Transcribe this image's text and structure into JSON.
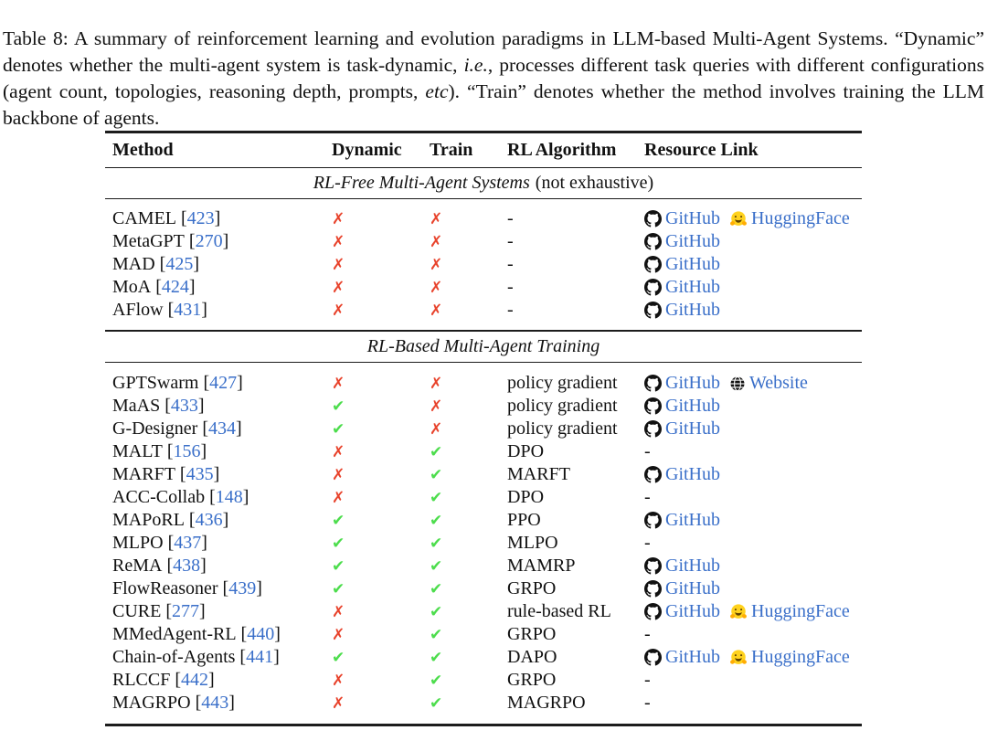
{
  "caption": {
    "p1": "Table 8: A summary of reinforcement learning and evolution paradigms in LLM-based Multi-Agent Systems. “Dynamic” denotes whether the multi-agent system is task-dynamic, ",
    "p2": "i.e.",
    "p3": ", processes different task queries with different configurations (agent count, topologies, reasoning depth, prompts, ",
    "p4": "etc",
    "p5": "). “Train” denotes whether the method involves training the LLM backbone of agents."
  },
  "marks": {
    "yes": "✔",
    "no": "✗"
  },
  "punct": {
    "open": "[",
    "close": "]",
    "dash": "-"
  },
  "link_labels": {
    "github": "GitHub",
    "huggingface": "HuggingFace",
    "website": "Website"
  },
  "colors": {
    "link_blue": "#3a6fc9",
    "check_green": "#4ddd4d",
    "cross_red": "#e8432c",
    "rule_black": "#1c1c1c",
    "text_black": "#111111"
  },
  "table": {
    "header": [
      "Method",
      "Dynamic",
      "Train",
      "RL Algorithm",
      "Resource Link"
    ],
    "sections": [
      {
        "title_italic": "RL-Free Multi-Agent Systems",
        "title_regular": "(not exhaustive)",
        "rows": [
          {
            "method": "CAMEL",
            "cite": "423",
            "dynamic": false,
            "train": false,
            "algorithm": "-",
            "links": [
              "github",
              "huggingface"
            ]
          },
          {
            "method": "MetaGPT",
            "cite": "270",
            "dynamic": false,
            "train": false,
            "algorithm": "-",
            "links": [
              "github"
            ]
          },
          {
            "method": "MAD",
            "cite": "425",
            "dynamic": false,
            "train": false,
            "algorithm": "-",
            "links": [
              "github"
            ]
          },
          {
            "method": "MoA",
            "cite": "424",
            "dynamic": false,
            "train": false,
            "algorithm": "-",
            "links": [
              "github"
            ]
          },
          {
            "method": "AFlow",
            "cite": "431",
            "dynamic": false,
            "train": false,
            "algorithm": "-",
            "links": [
              "github"
            ]
          }
        ]
      },
      {
        "title_italic": "RL-Based Multi-Agent Training",
        "title_regular": "",
        "rows": [
          {
            "method": "GPTSwarm",
            "cite": "427",
            "dynamic": false,
            "train": false,
            "algorithm": "policy gradient",
            "links": [
              "github",
              "website"
            ]
          },
          {
            "method": "MaAS",
            "cite": "433",
            "dynamic": true,
            "train": false,
            "algorithm": "policy gradient",
            "links": [
              "github"
            ]
          },
          {
            "method": "G-Designer",
            "cite": "434",
            "dynamic": true,
            "train": false,
            "algorithm": "policy gradient",
            "links": [
              "github"
            ]
          },
          {
            "method": "MALT",
            "cite": "156",
            "dynamic": false,
            "train": true,
            "algorithm": "DPO",
            "links": []
          },
          {
            "method": "MARFT",
            "cite": "435",
            "dynamic": false,
            "train": true,
            "algorithm": "MARFT",
            "links": [
              "github"
            ]
          },
          {
            "method": "ACC-Collab",
            "cite": "148",
            "dynamic": false,
            "train": true,
            "algorithm": "DPO",
            "links": []
          },
          {
            "method": "MAPoRL",
            "cite": "436",
            "dynamic": true,
            "train": true,
            "algorithm": "PPO",
            "links": [
              "github"
            ]
          },
          {
            "method": "MLPO",
            "cite": "437",
            "dynamic": true,
            "train": true,
            "algorithm": "MLPO",
            "links": []
          },
          {
            "method": "ReMA",
            "cite": "438",
            "dynamic": true,
            "train": true,
            "algorithm": "MAMRP",
            "links": [
              "github"
            ]
          },
          {
            "method": "FlowReasoner",
            "cite": "439",
            "dynamic": true,
            "train": true,
            "algorithm": "GRPO",
            "links": [
              "github"
            ]
          },
          {
            "method": "CURE",
            "cite": "277",
            "dynamic": false,
            "train": true,
            "algorithm": "rule-based RL",
            "links": [
              "github",
              "huggingface"
            ]
          },
          {
            "method": "MMedAgent-RL",
            "cite": "440",
            "dynamic": false,
            "train": true,
            "algorithm": "GRPO",
            "links": []
          },
          {
            "method": "Chain-of-Agents",
            "cite": "441",
            "dynamic": true,
            "train": true,
            "algorithm": "DAPO",
            "links": [
              "github",
              "huggingface"
            ]
          },
          {
            "method": "RLCCF",
            "cite": "442",
            "dynamic": false,
            "train": true,
            "algorithm": "GRPO",
            "links": []
          },
          {
            "method": "MAGRPO",
            "cite": "443",
            "dynamic": false,
            "train": true,
            "algorithm": "MAGRPO",
            "links": []
          }
        ]
      }
    ]
  }
}
